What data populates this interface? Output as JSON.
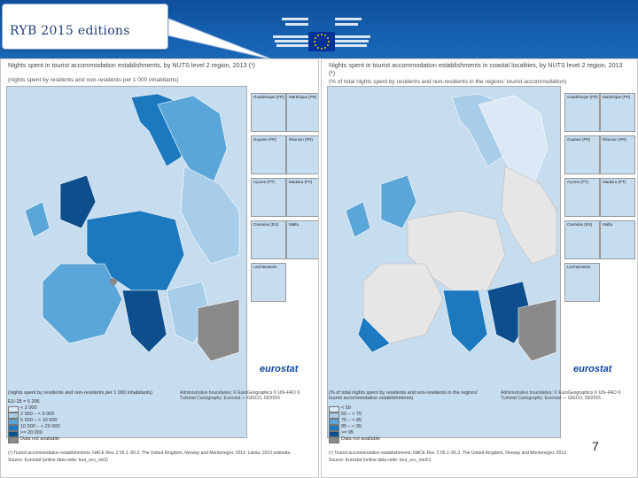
{
  "slide": {
    "title": "RYB 2015 editions",
    "page_number": "7"
  },
  "colors": {
    "header_blue": "#1560b0",
    "sea": "#c6dcef",
    "no_data": "#8a8a8a",
    "class_1": "#dbe9f6",
    "class_2": "#a8cde8",
    "class_3": "#5aa6d8",
    "class_4": "#1c78bf",
    "class_5": "#0d4f8c"
  },
  "left_map": {
    "title": "Nights spent in tourist accommodation establishments, by NUTS level 2 region, 2013 (¹)",
    "subtitle": "(nights spent by residents and non-residents per 1 000 inhabitants)",
    "insets": [
      "Guadeloupe (FR)",
      "Martinique (FR)",
      "Guyane (FR)",
      "Réunion (FR)",
      "Açores (PT)",
      "Madeira (PT)",
      "Canarias (ES)",
      "Malta",
      "Liechtenstein"
    ],
    "legend_title": "(nights spent by residents and non-residents per 1 000 inhabitants)",
    "legend_eu": "EU-28 = 5 206",
    "legend_items": [
      "< 2 000",
      "2 000 – < 5 000",
      "5 000 – < 10 000",
      "10 000 – < 20 000",
      ">= 20 000",
      "Data not available"
    ],
    "footnote_1": "(¹) Tourist accommodation establishments: NACE Rev. 2 55.1–55.3. The United Kingdom, Norway and Montenegro: 2012. Latvia: 2013 estimate.",
    "footnote_2": "Source: Eurostat (online data code: tour_occ_nin2)",
    "admin_text": "Administrative boundaries: © EuroGeographics © UN–FAO © Turkstat Cartography: Eurostat — GISCO, 03/2015"
  },
  "right_map": {
    "title": "Nights spent in tourist accommodation establishments in coastal localities, by NUTS level 2 region, 2013 (¹)",
    "subtitle": "(% of total nights spent by residents and non-residents in the regions' tourist accommodation)",
    "insets": [
      "Guadeloupe (FR)",
      "Martinique (FR)",
      "Guyane (FR)",
      "Réunion (FR)",
      "Açores (PT)",
      "Madeira (PT)",
      "Canarias (ES)",
      "Malta",
      "Liechtenstein"
    ],
    "legend_title": "(% of total nights spent by residents and non-residents in the regions' tourist accommodation establishments)",
    "legend_items": [
      "< 50",
      "50 – < 75",
      "75 – < 85",
      "85 – < 95",
      ">= 95",
      "Data not available"
    ],
    "footnote_1": "(¹) Tourist accommodation establishments: NACE Rev. 2 55.1–55.3. The United Kingdom, Norway and Montenegro: 2012.",
    "footnote_2": "Source: Eurostat (online data code: tour_occ_nin2c)",
    "admin_text": "Administrative boundaries: © EuroGeographics © UN–FAO © Turkstat Cartography: Eurostat — GISCO, 03/2015"
  },
  "brand": {
    "eurostat": "eurostat"
  }
}
